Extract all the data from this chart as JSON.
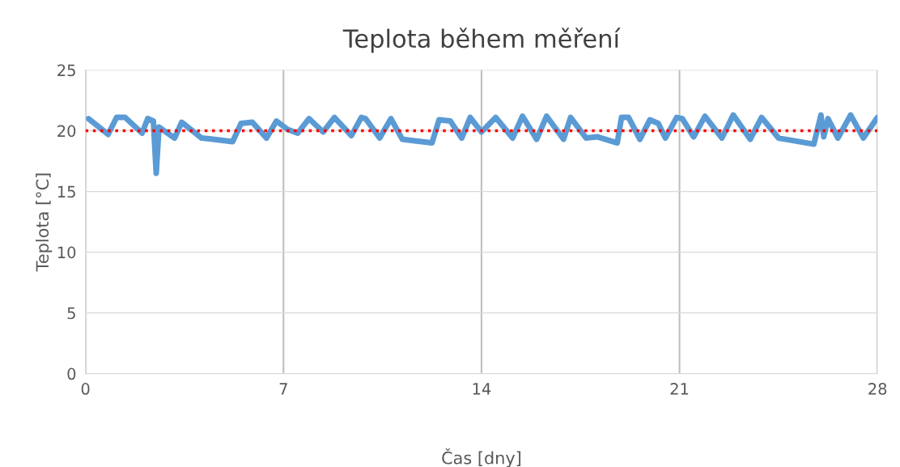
{
  "chart_data": {
    "type": "line",
    "title": "Teplota během měření",
    "xlabel": "Čas [dny]",
    "ylabel": "Teplota [°C]",
    "xlim": [
      0,
      28
    ],
    "xticks": [
      0,
      7,
      14,
      21,
      28
    ],
    "ylim": [
      0,
      25
    ],
    "yticks": [
      0,
      5,
      10,
      15,
      20,
      25
    ],
    "grid": true,
    "series": [
      {
        "color": "#5b9bd5",
        "x": [
          0.1,
          0.8,
          1.1,
          1.4,
          2.0,
          2.2,
          2.4,
          2.5,
          2.6,
          3.15,
          3.4,
          4.1,
          4.5,
          5.2,
          5.5,
          5.9,
          6.4,
          6.75,
          7.15,
          7.5,
          7.9,
          8.4,
          8.8,
          9.4,
          9.75,
          9.9,
          10.4,
          10.8,
          11.2,
          12.25,
          12.5,
          12.9,
          13.3,
          13.6,
          14.0,
          14.5,
          15.1,
          15.45,
          15.95,
          16.3,
          16.9,
          17.15,
          17.7,
          18.1,
          18.8,
          18.95,
          19.2,
          19.6,
          19.95,
          20.25,
          20.5,
          20.9,
          21.1,
          21.5,
          21.9,
          22.5,
          22.9,
          23.5,
          23.9,
          24.5,
          25.75,
          26.0,
          26.1,
          26.25,
          26.6,
          27.05,
          27.5,
          28.0
        ],
        "values": [
          21.0,
          19.7,
          21.1,
          21.1,
          19.8,
          21.0,
          20.8,
          16.5,
          20.3,
          19.4,
          20.7,
          19.4,
          19.3,
          19.1,
          20.6,
          20.7,
          19.4,
          20.8,
          20.1,
          19.8,
          21.0,
          19.9,
          21.1,
          19.6,
          21.1,
          21.0,
          19.4,
          21.0,
          19.3,
          19.0,
          20.9,
          20.8,
          19.4,
          21.1,
          19.9,
          21.1,
          19.4,
          21.2,
          19.3,
          21.2,
          19.3,
          21.1,
          19.4,
          19.5,
          19.0,
          21.1,
          21.1,
          19.3,
          20.9,
          20.6,
          19.4,
          21.1,
          21.0,
          19.5,
          21.2,
          19.4,
          21.3,
          19.3,
          21.1,
          19.4,
          18.9,
          21.3,
          19.5,
          21.0,
          19.4,
          21.3,
          19.4,
          21.1
        ]
      }
    ],
    "ref_lines": [
      {
        "axis": "y",
        "value": 20,
        "color": "#ff0000",
        "line_style": "dotted"
      }
    ]
  }
}
